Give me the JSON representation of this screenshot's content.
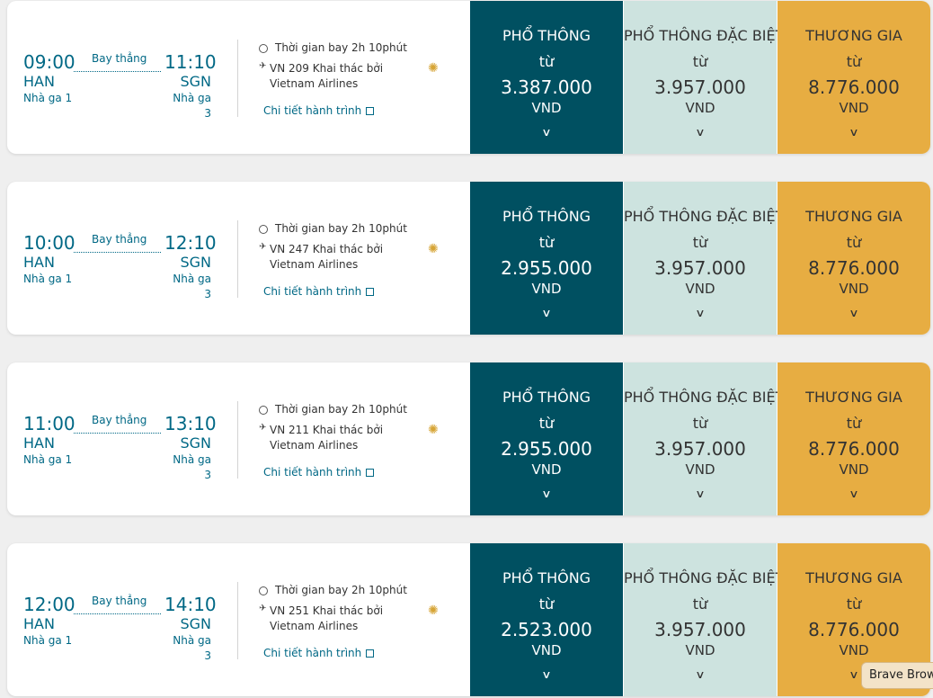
{
  "colors": {
    "economy": "#005061",
    "premium": "#cde3df",
    "business": "#e7ad42",
    "accent": "#006885"
  },
  "icons": {
    "clock": "clock-icon",
    "plane": "plane-icon",
    "lotus": "vietnam-airlines-lotus-icon",
    "external": "external-link-icon",
    "chevron": "chevron-down-icon"
  },
  "flights": [
    {
      "dep_time": "09:00",
      "arr_time": "11:10",
      "dep_code": "HAN",
      "arr_code": "SGN",
      "dep_terminal": "Nhà ga 1",
      "arr_terminal": "Nhà ga 3",
      "route_type": "Bay thẳng",
      "duration": "Thời gian bay 2h 10phút",
      "flight": "VN 209 Khai thác bởi Vietnam Airlines",
      "details_link": "Chi tiết hành trình",
      "fares": [
        {
          "name": "PHỔ THÔNG",
          "from": "từ",
          "price": "3.387.000",
          "currency": "VND"
        },
        {
          "name": "PHỔ THÔNG ĐẶC BIỆT",
          "from": "từ",
          "price": "3.957.000",
          "currency": "VND"
        },
        {
          "name": "THƯƠNG GIA",
          "from": "từ",
          "price": "8.776.000",
          "currency": "VND"
        }
      ]
    },
    {
      "dep_time": "10:00",
      "arr_time": "12:10",
      "dep_code": "HAN",
      "arr_code": "SGN",
      "dep_terminal": "Nhà ga 1",
      "arr_terminal": "Nhà ga 3",
      "route_type": "Bay thẳng",
      "duration": "Thời gian bay 2h 10phút",
      "flight": "VN 247 Khai thác bởi Vietnam Airlines",
      "details_link": "Chi tiết hành trình",
      "fares": [
        {
          "name": "PHỔ THÔNG",
          "from": "từ",
          "price": "2.955.000",
          "currency": "VND"
        },
        {
          "name": "PHỔ THÔNG ĐẶC BIỆT",
          "from": "từ",
          "price": "3.957.000",
          "currency": "VND"
        },
        {
          "name": "THƯƠNG GIA",
          "from": "từ",
          "price": "8.776.000",
          "currency": "VND"
        }
      ]
    },
    {
      "dep_time": "11:00",
      "arr_time": "13:10",
      "dep_code": "HAN",
      "arr_code": "SGN",
      "dep_terminal": "Nhà ga 1",
      "arr_terminal": "Nhà ga 3",
      "route_type": "Bay thẳng",
      "duration": "Thời gian bay 2h 10phút",
      "flight": "VN 211 Khai thác bởi Vietnam Airlines",
      "details_link": "Chi tiết hành trình",
      "fares": [
        {
          "name": "PHỔ THÔNG",
          "from": "từ",
          "price": "2.955.000",
          "currency": "VND"
        },
        {
          "name": "PHỔ THÔNG ĐẶC BIỆT",
          "from": "từ",
          "price": "3.957.000",
          "currency": "VND"
        },
        {
          "name": "THƯƠNG GIA",
          "from": "từ",
          "price": "8.776.000",
          "currency": "VND"
        }
      ]
    },
    {
      "dep_time": "12:00",
      "arr_time": "14:10",
      "dep_code": "HAN",
      "arr_code": "SGN",
      "dep_terminal": "Nhà ga 1",
      "arr_terminal": "Nhà ga 3",
      "route_type": "Bay thẳng",
      "duration": "Thời gian bay 2h 10phút",
      "flight": "VN 251 Khai thác bởi Vietnam Airlines",
      "details_link": "Chi tiết hành trình",
      "fares": [
        {
          "name": "PHỔ THÔNG",
          "from": "từ",
          "price": "2.523.000",
          "currency": "VND"
        },
        {
          "name": "PHỔ THÔNG ĐẶC BIỆT",
          "from": "từ",
          "price": "3.957.000",
          "currency": "VND"
        },
        {
          "name": "THƯƠNG GIA",
          "from": "từ",
          "price": "8.776.000",
          "currency": "VND"
        }
      ]
    }
  ],
  "tooltip": "Brave Brow"
}
